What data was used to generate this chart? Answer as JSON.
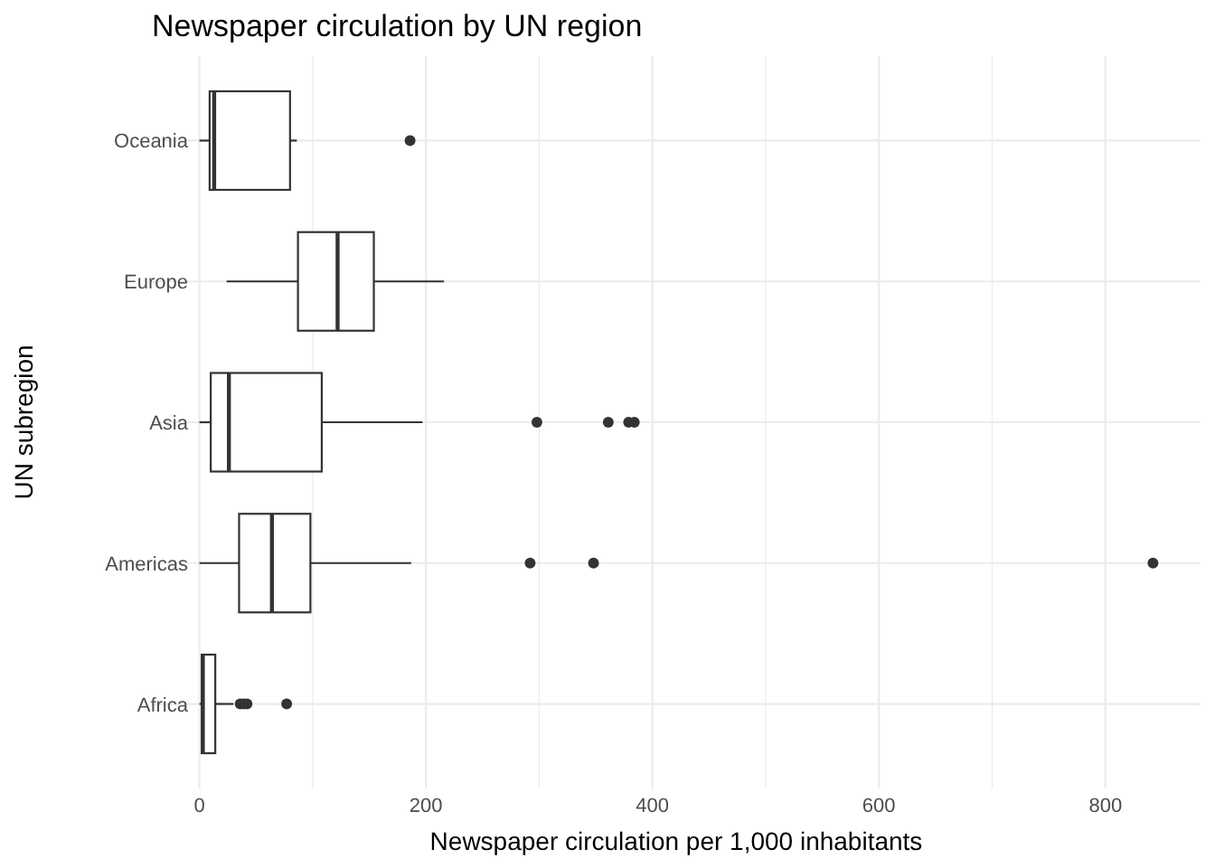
{
  "chart_data": {
    "type": "box",
    "title": "Newspaper circulation by UN region",
    "xlabel": "Newspaper circulation per 1,000 inhabitants",
    "ylabel": "UN subregion",
    "orientation": "horizontal",
    "categories": [
      "Oceania",
      "Europe",
      "Asia",
      "Americas",
      "Africa"
    ],
    "boxes": [
      {
        "low": 0,
        "q1": 9,
        "median": 13,
        "q3": 80,
        "high": 86,
        "outliers": [
          186
        ]
      },
      {
        "low": 24,
        "q1": 87,
        "median": 122,
        "q3": 154,
        "high": 216
      },
      {
        "low": 0,
        "q1": 10,
        "median": 26,
        "q3": 108,
        "high": 197,
        "outliers": [
          298,
          361,
          379,
          384
        ]
      },
      {
        "low": 0,
        "q1": 35,
        "median": 64,
        "q3": 98,
        "high": 187,
        "outliers": [
          292,
          348,
          842
        ]
      },
      {
        "low": 0,
        "q1": 2,
        "median": 3,
        "q3": 14,
        "high": 30,
        "outliers": [
          36,
          39,
          42,
          77
        ]
      }
    ],
    "color": "#333333",
    "xlim": [
      -42,
      884
    ],
    "xticks": [
      0,
      200,
      400,
      600,
      800
    ],
    "grid": true
  }
}
